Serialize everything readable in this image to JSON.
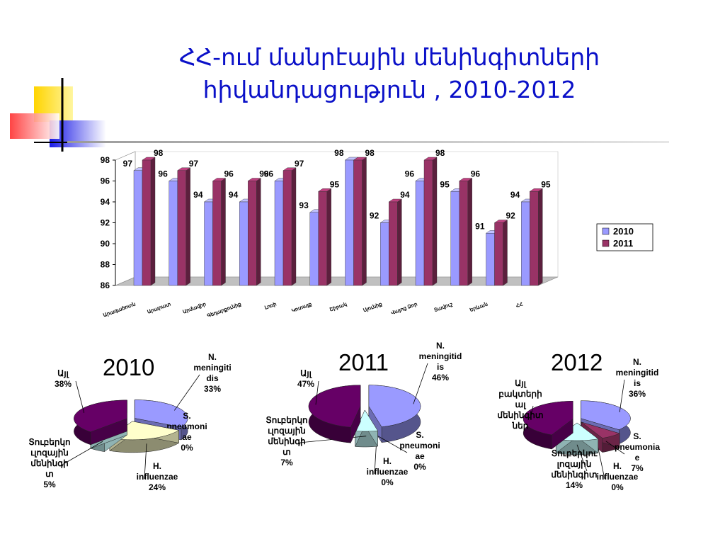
{
  "slide": {
    "title_line1": "ՀՀ-ում մանրէային մենինգիտների",
    "title_line2": "հիվանդացություն , 2010-2012"
  },
  "colors": {
    "title": "#0a10c8",
    "series_2010": "#9a9aff",
    "series_2011": "#993366"
  },
  "chart_data": [
    {
      "type": "bar",
      "style": "3d-clustered",
      "categories": [
        "Արագածոտն",
        "Արարատ",
        "Արմավիր",
        "Գեղարքունիք",
        "Լոռի",
        "Կոտայք",
        "Շիրակ",
        "Սյունիք",
        "Վայոց Ձոր",
        "Տավուշ",
        "Երևան",
        "ՀՀ"
      ],
      "series": [
        {
          "name": "2010",
          "values": [
            97,
            96,
            94,
            94,
            96,
            93,
            98,
            92,
            96,
            95,
            91,
            94
          ],
          "color": "#9a9aff"
        },
        {
          "name": "2011",
          "values": [
            98,
            97,
            96,
            96,
            97,
            95,
            98,
            94,
            98,
            96,
            92,
            95
          ],
          "color": "#993366"
        }
      ],
      "data_labels": [
        [
          "97",
          "98"
        ],
        [
          "96",
          "97"
        ],
        [
          "94",
          "96"
        ],
        [
          "94",
          "96"
        ],
        [
          "96",
          "97"
        ],
        [
          "93",
          "95"
        ],
        [
          "98",
          "98"
        ],
        [
          "92",
          "94"
        ],
        [
          "96",
          "98"
        ],
        [
          "95",
          "96"
        ],
        [
          "91",
          "92"
        ],
        [
          "94",
          "95"
        ]
      ],
      "yticks": [
        "98",
        "96",
        "94",
        "92",
        "90",
        "88",
        "86"
      ],
      "ylim": [
        86,
        98
      ],
      "legend": [
        "2010",
        "2011"
      ],
      "legend_position": "right"
    },
    {
      "type": "pie",
      "year_label": "2010",
      "slices": [
        {
          "label": "N. meningitidis",
          "value": 33,
          "label_lines": [
            "N.",
            "meningiti",
            "dis",
            "33%"
          ],
          "color": "#9a9aff"
        },
        {
          "label": "S. pneumoniae",
          "value": 0,
          "label_lines": [
            "S.",
            "pneumoni",
            "ae",
            "0%"
          ],
          "color": "#993366"
        },
        {
          "label": "H. influenzae",
          "value": 24,
          "label_lines": [
            "H.",
            "influenzae",
            "24%"
          ],
          "color": "#ffffcc"
        },
        {
          "label": "Տուբերկուլոզային մենինգիտ",
          "value": 5,
          "label_lines": [
            "Տուբերկո",
            "ւլոզային",
            "մենինգի",
            "տ",
            "5%"
          ],
          "color": "#ccffff"
        },
        {
          "label": "Այլ",
          "value": 38,
          "label_lines": [
            "Այլ",
            "38%"
          ],
          "color": "#660066"
        }
      ]
    },
    {
      "type": "pie",
      "year_label": "2011",
      "slices": [
        {
          "label": "N. meningitidis",
          "value": 46,
          "label_lines": [
            "N.",
            "meningitid",
            "is",
            "46%"
          ],
          "color": "#9a9aff"
        },
        {
          "label": "S. pneumoniae",
          "value": 0,
          "label_lines": [
            "S.",
            "pneumoni",
            "ae",
            "0%"
          ],
          "color": "#993366"
        },
        {
          "label": "H. influenzae",
          "value": 0,
          "label_lines": [
            "H.",
            "influenzae",
            "0%"
          ],
          "color": "#ffffcc"
        },
        {
          "label": "Տուբերկուլոզային մենինգիտ",
          "value": 7,
          "label_lines": [
            "Տուբերկո",
            "ւլոզային",
            "մենինգի",
            "տ",
            "7%"
          ],
          "color": "#ccffff"
        },
        {
          "label": "Այլ",
          "value": 47,
          "label_lines": [
            "Այլ",
            "47%"
          ],
          "color": "#660066"
        }
      ]
    },
    {
      "type": "pie",
      "year_label": "2012",
      "slices": [
        {
          "label": "N. meningitidis",
          "value": 36,
          "label_lines": [
            "N.",
            "meningitid",
            "is",
            "36%"
          ],
          "color": "#9a9aff"
        },
        {
          "label": "S. pneumoniae",
          "value": 7,
          "label_lines": [
            "S.",
            "pneumonia",
            "e",
            "7%"
          ],
          "color": "#993366"
        },
        {
          "label": "H. influenzae",
          "value": 0,
          "label_lines": [
            "H.",
            "influenzae",
            "0%"
          ],
          "color": "#ffffcc"
        },
        {
          "label": "Տուբերկուլոզային մենինգիտ",
          "value": 14,
          "label_lines": [
            "Տուբերկու",
            "լոզային",
            "մենինգիտ",
            "14%"
          ],
          "color": "#ccffff"
        },
        {
          "label": "Այլ բակտերիալ մենինգիտներ",
          "value": 43,
          "label_lines": [
            "Այլ",
            "բակտերի",
            "ալ",
            "մենինգիտ",
            "ներ"
          ],
          "color": "#660066"
        }
      ]
    }
  ]
}
